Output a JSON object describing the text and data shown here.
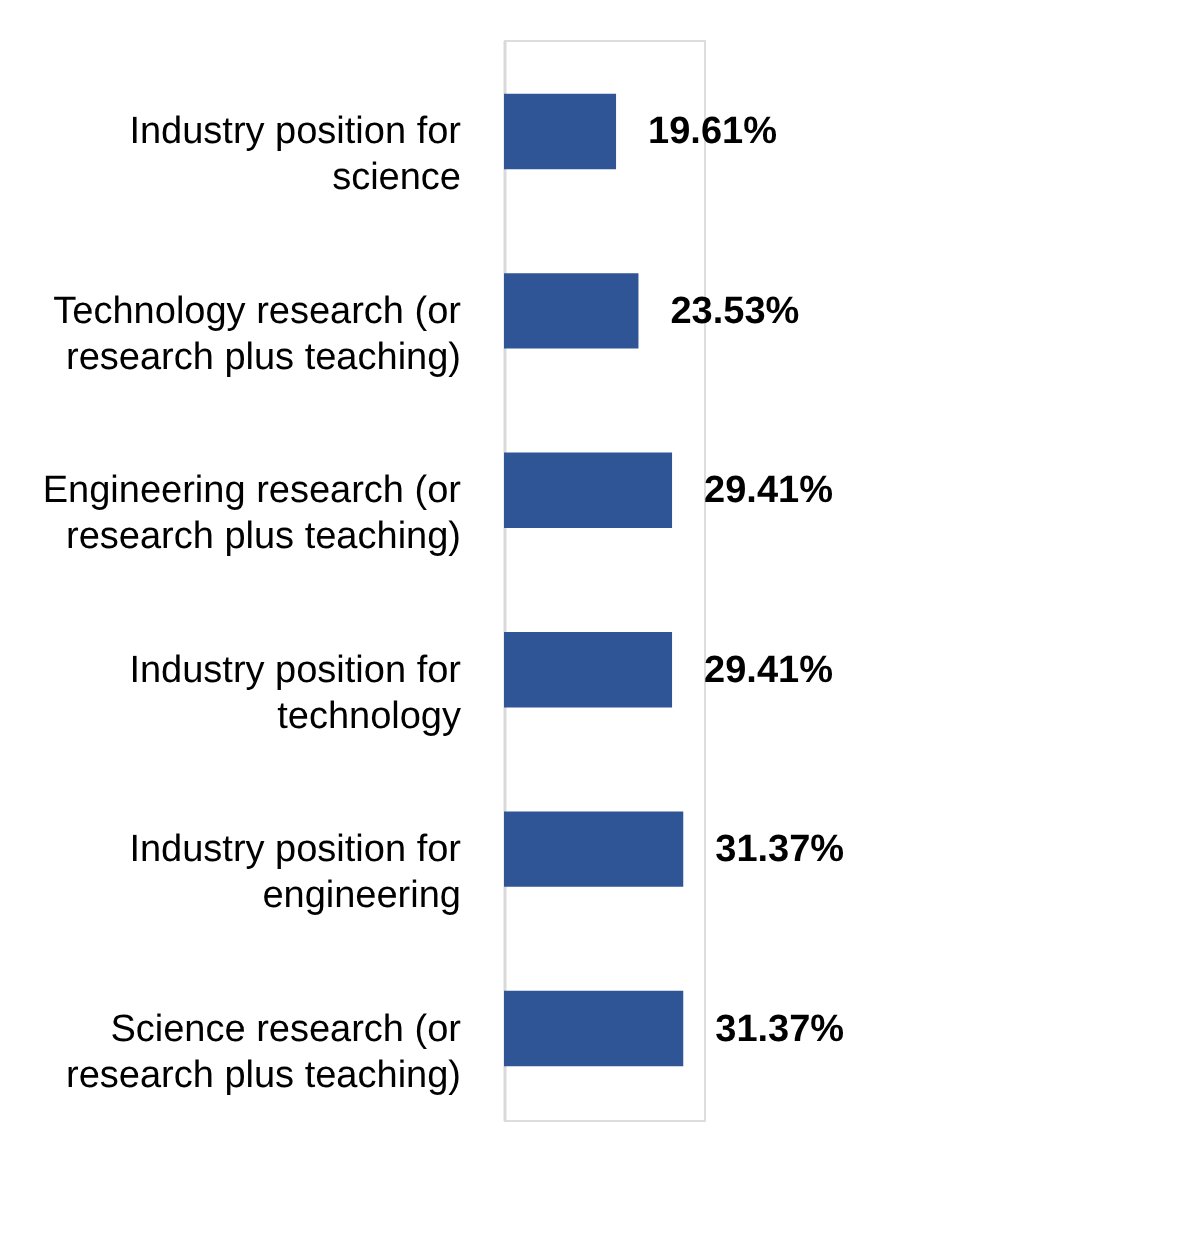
{
  "chart_data": {
    "type": "bar",
    "orientation": "horizontal",
    "categories": [
      "Industry position for science",
      "Technology research (or research plus teaching)",
      "Engineering research (or research plus teaching)",
      "Industry position for technology",
      "Industry position for engineering",
      "Science research (or research plus teaching)"
    ],
    "values": [
      19.61,
      23.53,
      29.41,
      29.41,
      31.37,
      31.37
    ],
    "value_labels": [
      "19.61%",
      "23.53%",
      "29.41%",
      "29.41%",
      "31.37%",
      "31.37%"
    ],
    "color": "#2f5597",
    "tick_labels": "y"
  }
}
